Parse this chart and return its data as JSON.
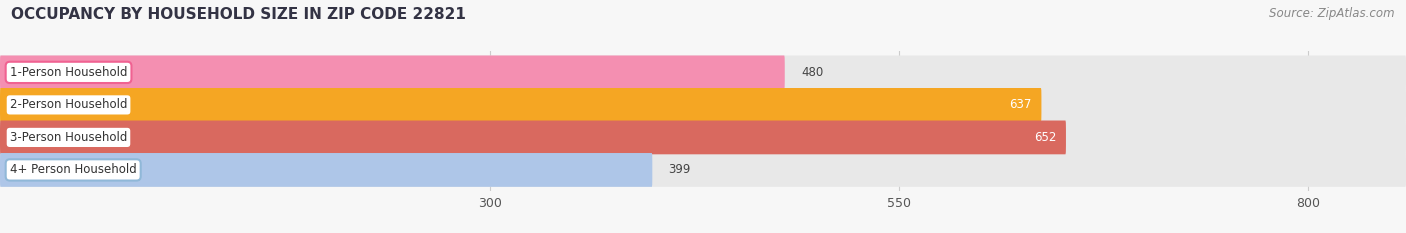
{
  "title": "OCCUPANCY BY HOUSEHOLD SIZE IN ZIP CODE 22821",
  "source": "Source: ZipAtlas.com",
  "categories": [
    "1-Person Household",
    "2-Person Household",
    "3-Person Household",
    "4+ Person Household"
  ],
  "values": [
    480,
    637,
    652,
    399
  ],
  "bar_colors": [
    "#f48fb1",
    "#f5a623",
    "#d9695f",
    "#aec6e8"
  ],
  "bar_bg_color": "#e8e8e8",
  "label_border_colors": [
    "#f06292",
    "#f5a623",
    "#d9695f",
    "#90b8d8"
  ],
  "value_label_colors": [
    "#555555",
    "#ffffff",
    "#ffffff",
    "#555555"
  ],
  "xticks": [
    300,
    550,
    800
  ],
  "xmin": 0,
  "xmax": 860,
  "background_color": "#f7f7f7",
  "title_color": "#333344",
  "source_color": "#888888",
  "title_fontsize": 11,
  "source_fontsize": 8.5,
  "bar_label_fontsize": 8.5,
  "value_fontsize": 8.5,
  "bar_height": 0.52,
  "bar_gap": 0.48
}
